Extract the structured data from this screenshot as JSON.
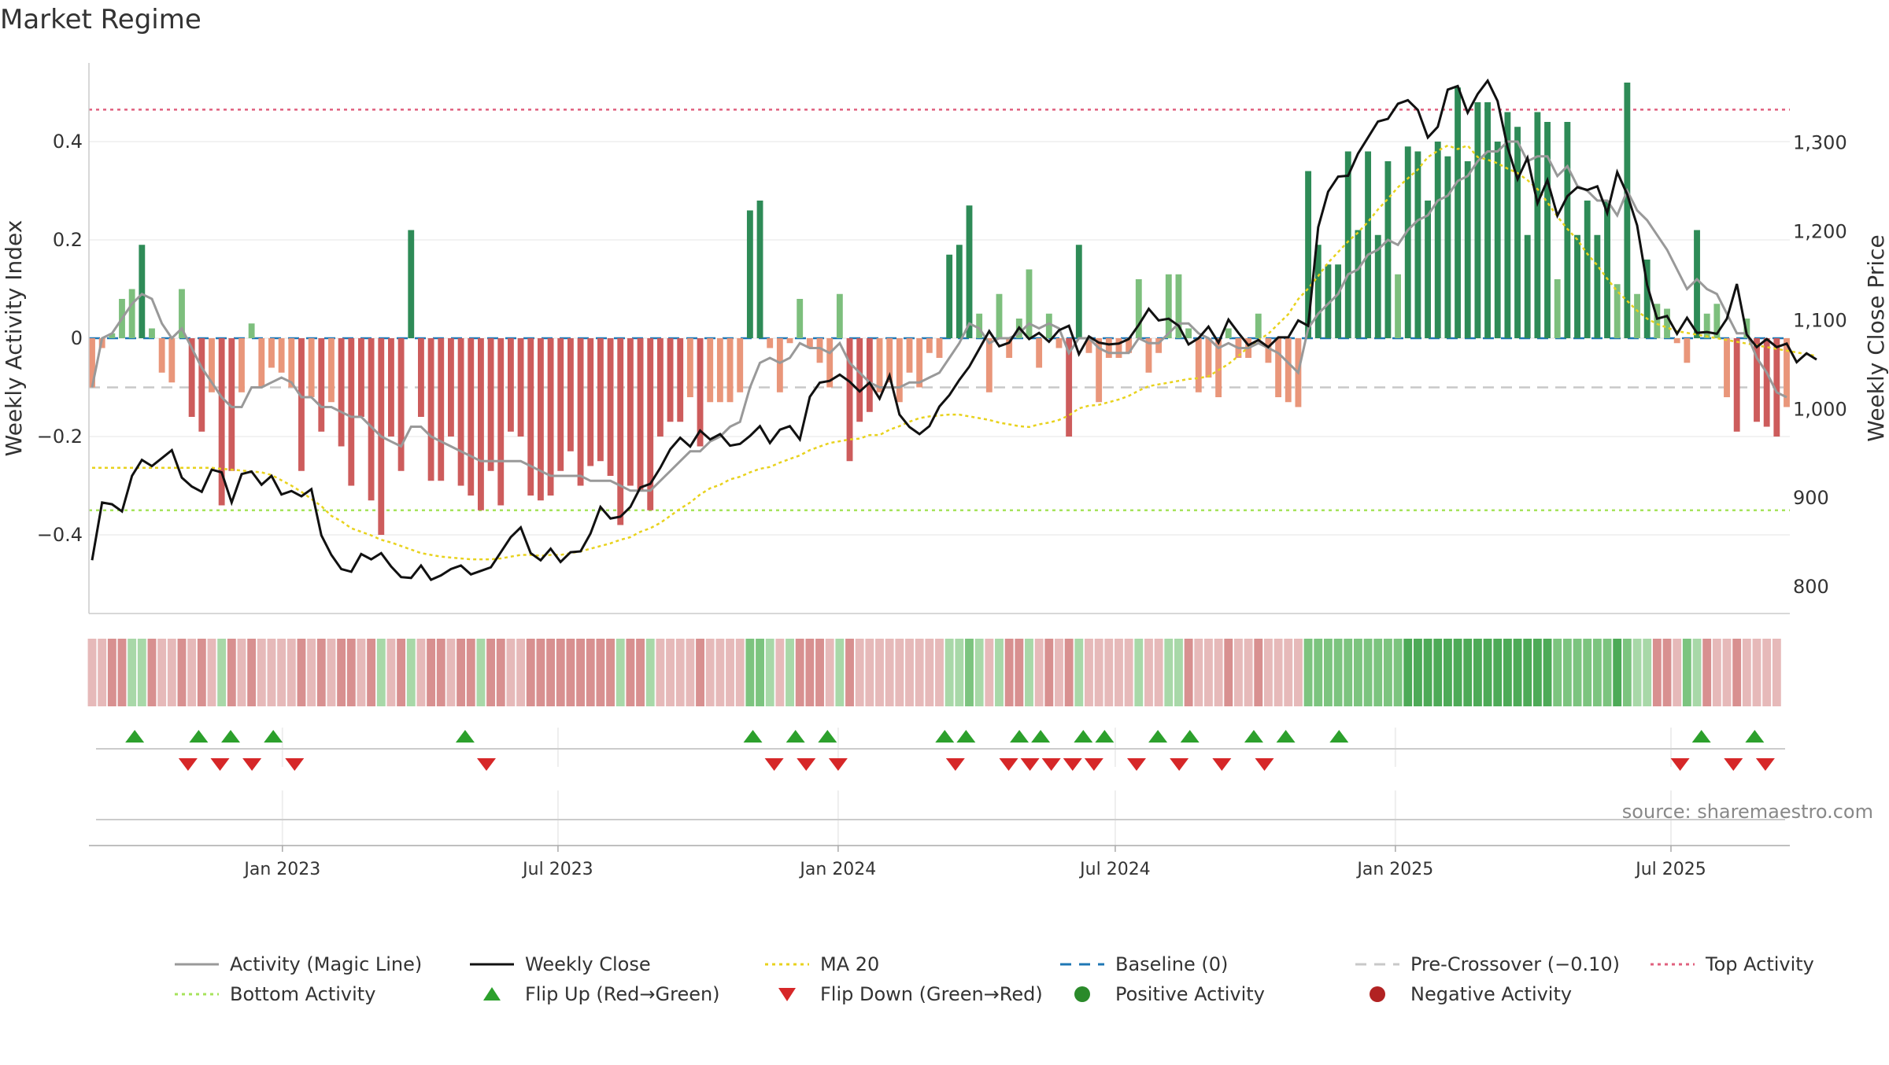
{
  "title": "Market Regime",
  "source": "source: sharemaestro.com",
  "chart_data": {
    "type": "bar",
    "x_start": "2022-08-29",
    "x_end": "2025-09-15",
    "y_left": {
      "label": "Weekly Activity Index",
      "range": [
        -0.56,
        0.56
      ],
      "ticks": [
        0.4,
        0.2,
        0,
        -0.2,
        -0.4
      ],
      "tick_labels": [
        "0.4",
        "0.2",
        "0",
        "−0.2",
        "−0.4"
      ]
    },
    "y_right": {
      "label": "Weekly Close Price",
      "range": [
        770,
        1390
      ],
      "ticks": [
        1300,
        1200,
        1100,
        1000,
        900,
        800
      ],
      "tick_labels": [
        "1,300",
        "1,200",
        "1,100",
        "1,000",
        "900",
        "800"
      ]
    },
    "x_ticks": [
      {
        "date": "2023-01-01",
        "label": "Jan 2023"
      },
      {
        "date": "2023-07-01",
        "label": "Jul 2023"
      },
      {
        "date": "2024-01-01",
        "label": "Jan 2024"
      },
      {
        "date": "2024-07-01",
        "label": "Jul 2024"
      },
      {
        "date": "2025-01-01",
        "label": "Jan 2025"
      },
      {
        "date": "2025-07-01",
        "label": "Jul 2025"
      }
    ],
    "reference_lines": {
      "top_activity": 0.465,
      "bottom_activity": -0.35,
      "pre_crossover": -0.1,
      "baseline": 0
    },
    "activity_index": [
      -0.1,
      -0.02,
      0.01,
      0.08,
      0.1,
      0.19,
      0.02,
      -0.07,
      -0.09,
      0.1,
      -0.16,
      -0.19,
      -0.11,
      -0.34,
      -0.27,
      -0.11,
      0.03,
      -0.1,
      -0.06,
      -0.07,
      -0.1,
      -0.27,
      -0.12,
      -0.19,
      -0.13,
      -0.22,
      -0.3,
      -0.16,
      -0.33,
      -0.4,
      -0.2,
      -0.27,
      0.22,
      -0.16,
      -0.29,
      -0.29,
      -0.2,
      -0.3,
      -0.32,
      -0.35,
      -0.27,
      -0.34,
      -0.19,
      -0.2,
      -0.32,
      -0.33,
      -0.32,
      -0.27,
      -0.23,
      -0.3,
      -0.26,
      -0.25,
      -0.28,
      -0.38,
      -0.3,
      -0.31,
      -0.35,
      -0.2,
      -0.17,
      -0.17,
      -0.12,
      -0.22,
      -0.13,
      -0.13,
      -0.13,
      -0.11,
      0.26,
      0.28,
      -0.02,
      -0.11,
      -0.01,
      0.08,
      -0.02,
      -0.05,
      -0.1,
      0.09,
      -0.25,
      -0.17,
      -0.15,
      -0.11,
      -0.09,
      -0.13,
      -0.07,
      -0.1,
      -0.03,
      -0.04,
      0.17,
      0.19,
      0.27,
      0.05,
      -0.11,
      0.09,
      -0.04,
      0.04,
      0.14,
      -0.06,
      0.05,
      -0.02,
      -0.2,
      0.19,
      -0.03,
      -0.13,
      -0.04,
      -0.04,
      -0.03,
      0.12,
      -0.07,
      -0.03,
      0.13,
      0.13,
      0.02,
      -0.11,
      -0.08,
      -0.12,
      0.02,
      -0.04,
      -0.04,
      0.05,
      -0.05,
      -0.12,
      -0.13,
      -0.14,
      0.34,
      0.19,
      0.15,
      0.15,
      0.38,
      0.22,
      0.38,
      0.21,
      0.36,
      0.13,
      0.39,
      0.38,
      0.28,
      0.4,
      0.37,
      0.51,
      0.36,
      0.48,
      0.48,
      0.4,
      0.46,
      0.43,
      0.21,
      0.46,
      0.44,
      0.12,
      0.44,
      0.21,
      0.28,
      0.21,
      0.28,
      0.11,
      0.52,
      0.09,
      0.16,
      0.07,
      0.06,
      -0.01,
      -0.05,
      0.22,
      0.05,
      0.07,
      -0.12,
      -0.19,
      0.04,
      -0.17,
      -0.18,
      -0.2,
      -0.14
    ],
    "magic_line": [
      -0.1,
      0.0,
      0.01,
      0.04,
      0.07,
      0.09,
      0.08,
      0.03,
      0.0,
      0.02,
      -0.02,
      -0.06,
      -0.09,
      -0.12,
      -0.14,
      -0.14,
      -0.1,
      -0.1,
      -0.09,
      -0.08,
      -0.09,
      -0.12,
      -0.12,
      -0.14,
      -0.14,
      -0.15,
      -0.16,
      -0.16,
      -0.18,
      -0.2,
      -0.21,
      -0.22,
      -0.18,
      -0.18,
      -0.2,
      -0.21,
      -0.22,
      -0.23,
      -0.24,
      -0.25,
      -0.25,
      -0.25,
      -0.25,
      -0.25,
      -0.26,
      -0.27,
      -0.28,
      -0.28,
      -0.28,
      -0.28,
      -0.29,
      -0.29,
      -0.29,
      -0.3,
      -0.31,
      -0.31,
      -0.31,
      -0.29,
      -0.27,
      -0.25,
      -0.23,
      -0.23,
      -0.21,
      -0.2,
      -0.18,
      -0.17,
      -0.1,
      -0.05,
      -0.04,
      -0.05,
      -0.04,
      -0.01,
      -0.02,
      -0.02,
      -0.03,
      -0.01,
      -0.05,
      -0.07,
      -0.09,
      -0.1,
      -0.1,
      -0.1,
      -0.09,
      -0.09,
      -0.08,
      -0.07,
      -0.04,
      -0.01,
      0.03,
      0.02,
      -0.01,
      0.0,
      0.0,
      0.01,
      0.03,
      0.02,
      0.03,
      0.02,
      -0.03,
      0.0,
      0.0,
      -0.02,
      -0.03,
      -0.03,
      -0.03,
      0.0,
      -0.01,
      -0.01,
      0.01,
      0.03,
      0.03,
      0.01,
      0.0,
      -0.02,
      -0.01,
      -0.02,
      -0.02,
      -0.01,
      -0.02,
      -0.03,
      -0.05,
      -0.07,
      0.02,
      0.05,
      0.07,
      0.09,
      0.13,
      0.14,
      0.17,
      0.18,
      0.2,
      0.19,
      0.22,
      0.24,
      0.25,
      0.28,
      0.29,
      0.32,
      0.33,
      0.36,
      0.38,
      0.38,
      0.4,
      0.4,
      0.36,
      0.37,
      0.37,
      0.33,
      0.35,
      0.31,
      0.3,
      0.28,
      0.28,
      0.25,
      0.3,
      0.26,
      0.24,
      0.21,
      0.18,
      0.14,
      0.1,
      0.12,
      0.1,
      0.09,
      0.05,
      0.01,
      0.01,
      -0.04,
      -0.07,
      -0.11,
      -0.12
    ],
    "weekly_close": [
      830,
      895,
      893,
      885,
      925,
      943,
      936,
      945,
      954,
      923,
      913,
      907,
      932,
      929,
      895,
      927,
      930,
      915,
      925,
      904,
      908,
      902,
      910,
      858,
      836,
      820,
      817,
      837,
      831,
      838,
      823,
      811,
      810,
      824,
      808,
      813,
      820,
      824,
      814,
      818,
      822,
      839,
      856,
      867,
      838,
      830,
      843,
      828,
      839,
      840,
      860,
      890,
      877,
      879,
      890,
      912,
      916,
      934,
      955,
      968,
      958,
      976,
      966,
      972,
      959,
      961,
      970,
      981,
      962,
      977,
      981,
      966,
      1014,
      1030,
      1032,
      1039,
      1031,
      1020,
      1030,
      1012,
      1038,
      994,
      980,
      972,
      981,
      1003,
      1016,
      1033,
      1048,
      1068,
      1088,
      1071,
      1075,
      1092,
      1079,
      1086,
      1076,
      1089,
      1094,
      1062,
      1082,
      1075,
      1073,
      1074,
      1079,
      1095,
      1113,
      1100,
      1102,
      1094,
      1073,
      1080,
      1093,
      1075,
      1101,
      1086,
      1072,
      1078,
      1070,
      1081,
      1081,
      1100,
      1094,
      1205,
      1245,
      1262,
      1263,
      1288,
      1306,
      1324,
      1327,
      1344,
      1348,
      1337,
      1306,
      1318,
      1360,
      1364,
      1334,
      1355,
      1370,
      1347,
      1295,
      1259,
      1283,
      1232,
      1258,
      1218,
      1240,
      1250,
      1247,
      1251,
      1221,
      1267,
      1242,
      1207,
      1140,
      1102,
      1105,
      1085,
      1103,
      1086,
      1087,
      1085,
      1102,
      1141,
      1084,
      1070,
      1079,
      1070,
      1074,
      1053,
      1063,
      1056
    ],
    "ma20": [
      934,
      934,
      934,
      934,
      934,
      934,
      934,
      934,
      934,
      934,
      934,
      934,
      934,
      933,
      932,
      931,
      930,
      929,
      926,
      920,
      914,
      907,
      899,
      891,
      880,
      874,
      866,
      862,
      858,
      853,
      850,
      846,
      842,
      838,
      836,
      834,
      833,
      832,
      831,
      831,
      831,
      832,
      834,
      836,
      836,
      835,
      836,
      836,
      838,
      840,
      843,
      846,
      849,
      853,
      856,
      862,
      866,
      872,
      880,
      888,
      895,
      904,
      911,
      915,
      921,
      924,
      929,
      933,
      935,
      940,
      944,
      948,
      954,
      958,
      962,
      964,
      966,
      967,
      971,
      971,
      977,
      981,
      986,
      990,
      992,
      993,
      994,
      994,
      992,
      990,
      988,
      985,
      983,
      981,
      980,
      983,
      985,
      988,
      993,
      1001,
      1004,
      1005,
      1008,
      1011,
      1015,
      1021,
      1026,
      1028,
      1030,
      1032,
      1034,
      1035,
      1037,
      1044,
      1051,
      1060,
      1070,
      1078,
      1085,
      1096,
      1107,
      1124,
      1136,
      1150,
      1165,
      1177,
      1189,
      1199,
      1211,
      1225,
      1237,
      1250,
      1260,
      1270,
      1284,
      1291,
      1297,
      1293,
      1297,
      1284,
      1281,
      1277,
      1271,
      1266,
      1258,
      1248,
      1233,
      1217,
      1203,
      1191,
      1175,
      1162,
      1147,
      1133,
      1122,
      1111,
      1102,
      1096,
      1092,
      1088,
      1086,
      1084,
      1082,
      1080,
      1078,
      1076,
      1074,
      1072,
      1070,
      1068,
      1066,
      1064,
      1062,
      1060
    ],
    "strip_tones": [
      1,
      1,
      2,
      2,
      3,
      3,
      2,
      1,
      1,
      2,
      1,
      2,
      1,
      3,
      2,
      1,
      2,
      1,
      1,
      1,
      1,
      2,
      1,
      2,
      1,
      2,
      2,
      1,
      2,
      3,
      1,
      2,
      3,
      1,
      2,
      2,
      1,
      2,
      2,
      3,
      2,
      2,
      1,
      1,
      2,
      2,
      2,
      2,
      2,
      2,
      2,
      2,
      2,
      3,
      2,
      2,
      3,
      1,
      1,
      1,
      1,
      2,
      1,
      1,
      1,
      1,
      4,
      4,
      3,
      1,
      3,
      2,
      2,
      2,
      1,
      3,
      2,
      1,
      1,
      1,
      1,
      1,
      1,
      1,
      1,
      1,
      3,
      3,
      4,
      3,
      1,
      3,
      2,
      2,
      3,
      1,
      2,
      1,
      2,
      3,
      1,
      1,
      1,
      1,
      1,
      3,
      1,
      1,
      3,
      3,
      2,
      1,
      1,
      1,
      2,
      1,
      1,
      2,
      1,
      1,
      1,
      1,
      4,
      4,
      4,
      4,
      4,
      4,
      4,
      4,
      4,
      4,
      5,
      5,
      5,
      5,
      5,
      5,
      5,
      5,
      5,
      5,
      5,
      5,
      5,
      5,
      5,
      4,
      4,
      4,
      4,
      4,
      4,
      5,
      4,
      3,
      3,
      2,
      2,
      1,
      4,
      3,
      2,
      1,
      1,
      2,
      1,
      1,
      1,
      1
    ],
    "flip_up": [
      "2022-09-26",
      "2022-11-07",
      "2022-11-28",
      "2022-12-26",
      "2023-05-01",
      "2023-11-06",
      "2023-12-04",
      "2023-12-25",
      "2024-03-11",
      "2024-03-25",
      "2024-04-29",
      "2024-05-13",
      "2024-06-10",
      "2024-06-24",
      "2024-07-29",
      "2024-08-19",
      "2024-09-30",
      "2024-10-21",
      "2024-11-25",
      "2025-07-21",
      "2025-08-25"
    ],
    "flip_down": [
      "2022-10-31",
      "2022-11-21",
      "2022-12-12",
      "2023-01-09",
      "2023-05-15",
      "2023-11-20",
      "2023-12-11",
      "2024-01-01",
      "2024-03-18",
      "2024-04-22",
      "2024-05-06",
      "2024-05-20",
      "2024-06-03",
      "2024-06-17",
      "2024-07-15",
      "2024-08-12",
      "2024-09-09",
      "2024-10-07",
      "2025-07-07",
      "2025-08-11",
      "2025-09-01"
    ]
  },
  "legend": [
    {
      "label": "Activity (Magic Line)",
      "kind": "line",
      "color": "#999999"
    },
    {
      "label": "Weekly Close",
      "kind": "line",
      "color": "#111111"
    },
    {
      "label": "MA 20",
      "kind": "dotted",
      "color": "#e8d21d"
    },
    {
      "label": "Baseline (0)",
      "kind": "dashed",
      "color": "#1f77b4"
    },
    {
      "label": "Pre-Crossover (−0.10)",
      "kind": "dashed",
      "color": "#c8c8c8"
    },
    {
      "label": "Top Activity",
      "kind": "dotted",
      "color": "#e0607e"
    },
    {
      "label": "Bottom Activity",
      "kind": "dotted",
      "color": "#a6e35b"
    },
    {
      "label": "Flip Up (Red→Green)",
      "kind": "tri-up",
      "color": "#2ca02c"
    },
    {
      "label": "Flip Down (Green→Red)",
      "kind": "tri-down",
      "color": "#d62728"
    },
    {
      "label": "Positive Activity",
      "kind": "dot",
      "color": "#2a8a2a"
    },
    {
      "label": "Negative Activity",
      "kind": "dot",
      "color": "#b22222"
    }
  ],
  "colors": {
    "pos_strong": "#2e8b57",
    "pos_weak": "#7dbf7d",
    "neg_strong": "#cd5c5c",
    "neg_weak": "#e9967a",
    "strip_scale": [
      "#f3d8d8",
      "#e6b9b9",
      "#d89090",
      "#a8d8a8",
      "#7cc47f",
      "#4daa57"
    ]
  }
}
